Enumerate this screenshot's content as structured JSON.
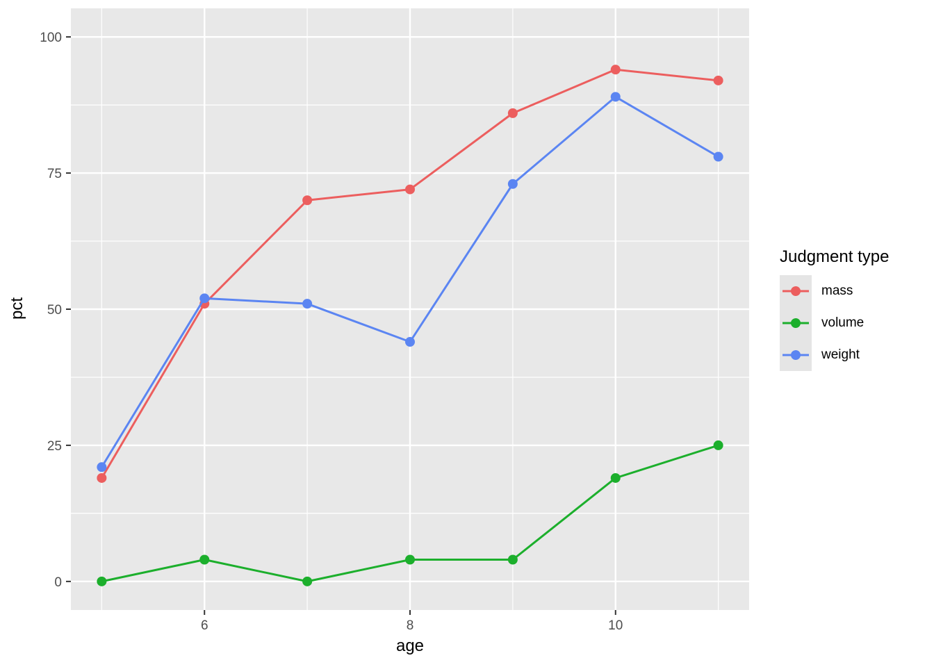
{
  "chart_data": {
    "type": "line",
    "xlabel": "age",
    "ylabel": "pct",
    "legend_title": "Judgment type",
    "x": [
      5,
      6,
      7,
      8,
      9,
      10,
      11
    ],
    "series": [
      {
        "name": "mass",
        "color": "#EC5E5E",
        "values": [
          19,
          51,
          70,
          72,
          86,
          94,
          92
        ]
      },
      {
        "name": "volume",
        "color": "#1CAF2C",
        "values": [
          0,
          4,
          0,
          4,
          4,
          19,
          25
        ]
      },
      {
        "name": "weight",
        "color": "#5B85F2",
        "values": [
          21,
          52,
          51,
          44,
          73,
          89,
          78
        ]
      }
    ],
    "x_ticks": [
      6,
      8,
      10
    ],
    "x_minor_ticks": [
      5,
      7,
      9,
      11
    ],
    "y_ticks": [
      0,
      25,
      50,
      75,
      100
    ],
    "y_minor_ticks": [
      12.5,
      37.5,
      62.5,
      87.5
    ],
    "xlim": [
      4.7,
      11.3
    ],
    "ylim": [
      -5.25,
      105.25
    ],
    "grid": "on",
    "legend_position": "right",
    "colors": {
      "panel_background": "#E8E8E8",
      "gridline": "#FFFFFF",
      "tick_label": "#4D4D4D",
      "tick_mark": "#333333",
      "legend_key_background": "#E5E5E5"
    }
  }
}
